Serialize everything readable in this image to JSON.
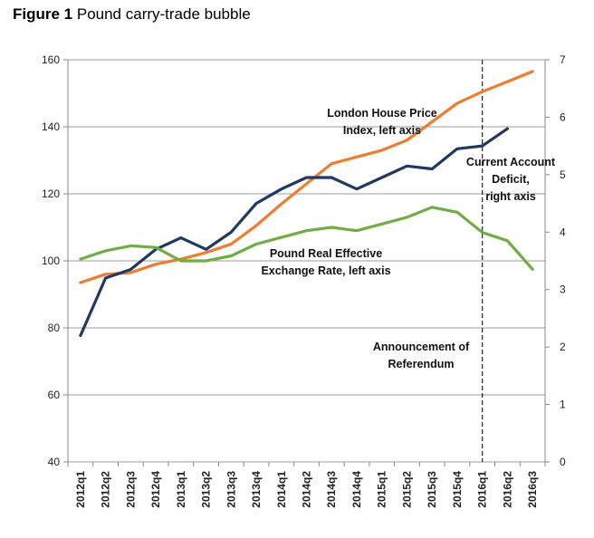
{
  "title": {
    "prefix": "Figure 1",
    "text": "Pound carry-trade bubble"
  },
  "chart_data": {
    "type": "line",
    "title": "Figure 1 Pound carry-trade bubble",
    "categories": [
      "2012q1",
      "2012q2",
      "2012q3",
      "2012q4",
      "2013q1",
      "2013q2",
      "2013q3",
      "2013q4",
      "2014q1",
      "2014q2",
      "2014q3",
      "2014q4",
      "2015q1",
      "2015q2",
      "2015q3",
      "2015q4",
      "2016q1",
      "2016q2",
      "2016q3"
    ],
    "y_left": {
      "min": 40,
      "max": 160,
      "ticks": [
        40,
        60,
        80,
        100,
        120,
        140,
        160
      ]
    },
    "y_right": {
      "min": 0,
      "max": 7,
      "ticks": [
        0,
        1,
        2,
        3,
        4,
        5,
        6,
        7
      ]
    },
    "grid": true,
    "series": [
      {
        "name": "London House Price Index, left axis",
        "axis": "left",
        "color": "#ed7d31",
        "values": [
          93.5,
          96,
          96.5,
          99,
          100.5,
          102.5,
          105,
          110.5,
          117,
          123,
          129,
          131,
          133,
          136,
          141.5,
          147,
          150.5,
          153.5,
          156.5
        ]
      },
      {
        "name": "Current Account Deficit, right axis",
        "axis": "right",
        "color": "#1f3864",
        "values": [
          2.2,
          3.2,
          3.35,
          3.7,
          3.9,
          3.7,
          4.0,
          4.5,
          4.75,
          4.95,
          4.95,
          4.75,
          4.95,
          5.15,
          5.1,
          5.45,
          5.5,
          5.8,
          null
        ]
      },
      {
        "name": "Pound Real Effective Exchange Rate, left axis",
        "axis": "left",
        "color": "#70ad47",
        "values": [
          100.5,
          103,
          104.5,
          104,
          100,
          100,
          101.5,
          105,
          107,
          109,
          110,
          109,
          111,
          113,
          116,
          114.5,
          108.5,
          106,
          97.5
        ]
      }
    ],
    "annotations": [
      {
        "lines": [
          "London House Price",
          "Index, left axis"
        ]
      },
      {
        "lines": [
          "Current Account",
          "Deficit,",
          "right axis"
        ]
      },
      {
        "lines": [
          "Pound Real Effective",
          "Exchange Rate, left axis"
        ]
      },
      {
        "lines": [
          "Announcement of",
          "Referendum"
        ]
      }
    ],
    "vertical_marker": {
      "category": "2016q1",
      "style": "dashed",
      "label": "Announcement of Referendum"
    }
  }
}
